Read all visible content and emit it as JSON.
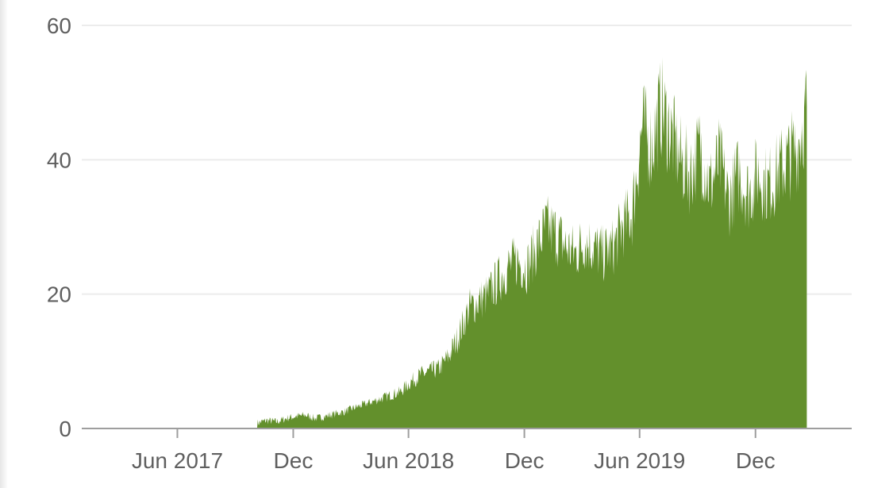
{
  "chart_data": {
    "type": "area",
    "title": "",
    "xlabel": "",
    "ylabel": "",
    "x_range": [
      "2017-01-01",
      "2020-05-01"
    ],
    "ylim": [
      0,
      60
    ],
    "y_ticks": [
      0,
      20,
      40,
      60
    ],
    "y_tick_labels": [
      "0",
      "20",
      "40",
      "60"
    ],
    "x_ticks": [
      "2017-06-01",
      "2017-12-01",
      "2018-06-01",
      "2018-12-01",
      "2019-06-01",
      "2019-12-01"
    ],
    "x_tick_labels": [
      "Jun 2017",
      "Dec",
      "Jun 2018",
      "Dec",
      "Jun 2019",
      "Dec"
    ],
    "grid": true,
    "legend": "none",
    "colors": {
      "fill": "#63902c",
      "grid": "#ececec",
      "axis": "#9e9e9e",
      "text": "#5f5f5f"
    },
    "series": [
      {
        "x": [
          "2017-10-05",
          "2017-10-20",
          "2017-11-05",
          "2017-11-20",
          "2017-12-05",
          "2017-12-20",
          "2018-01-05",
          "2018-01-20",
          "2018-02-05",
          "2018-02-20",
          "2018-03-05",
          "2018-03-20",
          "2018-04-05",
          "2018-04-20",
          "2018-05-05",
          "2018-05-20",
          "2018-06-05",
          "2018-06-20",
          "2018-07-05",
          "2018-07-20",
          "2018-08-05",
          "2018-08-20",
          "2018-09-05",
          "2018-09-20",
          "2018-10-05",
          "2018-10-20",
          "2018-11-05",
          "2018-11-20",
          "2018-12-05",
          "2018-12-20",
          "2019-01-05",
          "2019-01-20",
          "2019-02-05",
          "2019-02-20",
          "2019-03-05",
          "2019-03-20",
          "2019-04-05",
          "2019-04-20",
          "2019-05-05",
          "2019-05-20",
          "2019-06-05",
          "2019-06-20",
          "2019-07-05",
          "2019-07-20",
          "2019-08-05",
          "2019-08-20",
          "2019-09-05",
          "2019-09-20",
          "2019-10-05",
          "2019-10-20",
          "2019-11-05",
          "2019-11-20",
          "2019-12-05",
          "2019-12-20",
          "2020-01-05",
          "2020-01-20",
          "2020-02-05",
          "2020-02-20"
        ],
        "values": [
          0.8,
          1.2,
          1.0,
          1.5,
          1.8,
          2.0,
          1.5,
          1.8,
          2.2,
          2.5,
          3.0,
          3.5,
          4.0,
          4.5,
          5.0,
          5.5,
          7,
          8,
          8.5,
          9,
          11,
          14,
          18,
          19,
          20,
          22,
          24,
          25,
          24,
          27,
          30,
          29,
          27,
          26,
          28,
          27,
          26,
          27,
          30,
          32,
          45,
          42,
          48,
          44,
          40,
          38,
          42,
          36,
          40,
          34,
          38,
          35,
          38,
          36,
          38,
          40,
          42,
          48
        ]
      }
    ]
  }
}
